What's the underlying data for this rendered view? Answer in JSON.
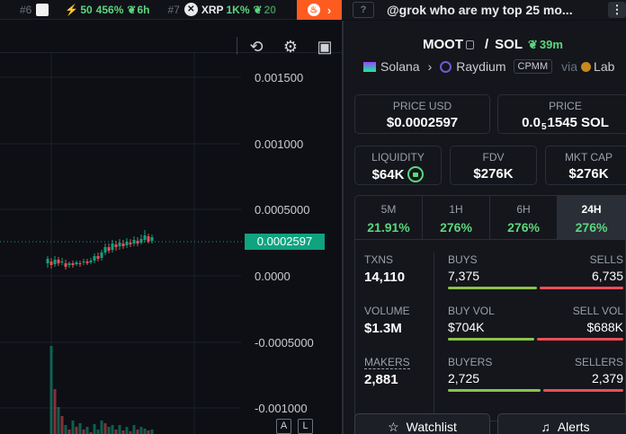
{
  "ticker": {
    "items": [
      {
        "rank": "#6",
        "stats": "",
        "age": ""
      },
      {
        "rank": "",
        "boost": "50",
        "change": "456%",
        "age": "6h"
      },
      {
        "rank": "#7",
        "symbol": "XRP",
        "change": "1K%",
        "age": "20"
      }
    ]
  },
  "chat": {
    "prompt": "@grok who are my top 25 mo...",
    "q_label": "?"
  },
  "chart": {
    "y_ticks": [
      "0.001500",
      "0.001000",
      "0.0005000",
      "0.0000",
      "-0.0005000",
      "-0.001000"
    ],
    "current_price": "0.0002597",
    "buttons": {
      "a": "A",
      "l": "L"
    },
    "colors": {
      "up": "#0fa37f",
      "down": "#ef4d56"
    }
  },
  "pair": {
    "base": "MOOT",
    "quote": "SOL",
    "separator": "/",
    "age": "39m",
    "chain": "Solana",
    "dex": "Raydium",
    "dex_type": "CPMM",
    "via": "via",
    "launchpad": "Lab"
  },
  "stats": {
    "price_usd": {
      "label": "PRICE USD",
      "value": "$0.0002597"
    },
    "price_native": {
      "label": "PRICE",
      "prefix": "0.0",
      "sub": "5",
      "value": "1545 SOL"
    },
    "liquidity": {
      "label": "LIQUIDITY",
      "value": "$64K"
    },
    "fdv": {
      "label": "FDV",
      "value": "$276K"
    },
    "mktcap": {
      "label": "MKT CAP",
      "value": "$276K"
    }
  },
  "timeframes": [
    {
      "label": "5M",
      "value": "21.91%"
    },
    {
      "label": "1H",
      "value": "276%"
    },
    {
      "label": "6H",
      "value": "276%"
    },
    {
      "label": "24H",
      "value": "276%"
    }
  ],
  "txns": {
    "txns_label": "TXNS",
    "txns_value": "14,110",
    "volume_label": "VOLUME",
    "volume_value": "$1.3M",
    "makers_label": "MAKERS",
    "makers_value": "2,881",
    "buys_label": "BUYS",
    "buys_value": "7,375",
    "sells_label": "SELLS",
    "sells_value": "6,735",
    "buyvol_label": "BUY VOL",
    "buyvol_value": "$704K",
    "sellvol_label": "SELL VOL",
    "sellvol_value": "$688K",
    "buyers_label": "BUYERS",
    "buyers_value": "2,725",
    "sellers_label": "SELLERS",
    "sellers_value": "2,379"
  },
  "actions": {
    "watchlist": "Watchlist",
    "alerts": "Alerts"
  }
}
